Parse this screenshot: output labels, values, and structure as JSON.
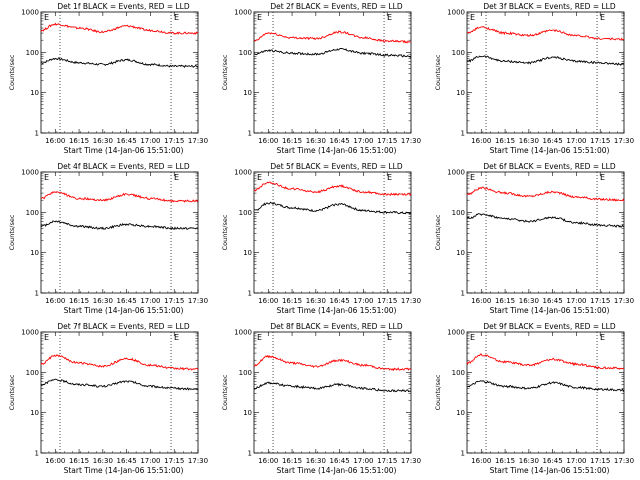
{
  "colors": {
    "events": "#000000",
    "lld": "#ff0000",
    "axes": "#000000",
    "marker": "#000000"
  },
  "shared": {
    "title_suffix": "BLACK = Events, RED = LLD",
    "ylabel": "Counts/sec",
    "xlabel": "Start Time (14-Jan-06 15:51:00)",
    "xticks": [
      "16:00",
      "16:15",
      "16:30",
      "16:45",
      "17:00",
      "17:15",
      "17:30"
    ],
    "yticks": [
      "1",
      "10",
      "100",
      "1000"
    ],
    "corner_mark": "E",
    "y_scale": "log"
  },
  "chart_data": [
    {
      "type": "line",
      "title": "Det 1f BLACK = Events, RED = LLD",
      "xlabel": "Start Time (14-Jan-06 15:51:00)",
      "ylabel": "Counts/sec",
      "x": [
        "15:51",
        "16:00",
        "16:15",
        "16:30",
        "16:45",
        "17:00",
        "17:15",
        "17:30"
      ],
      "ylim": [
        1,
        1000
      ],
      "y_scale": "log",
      "series": [
        {
          "name": "Events",
          "values": [
            55,
            70,
            55,
            50,
            65,
            50,
            45,
            45
          ]
        },
        {
          "name": "LLD",
          "values": [
            350,
            500,
            400,
            320,
            450,
            350,
            300,
            300
          ]
        }
      ]
    },
    {
      "type": "line",
      "title": "Det 2f BLACK = Events, RED = LLD",
      "xlabel": "Start Time (14-Jan-06 15:51:00)",
      "ylabel": "Counts/sec",
      "x": [
        "15:51",
        "16:00",
        "16:15",
        "16:30",
        "16:45",
        "17:00",
        "17:15",
        "17:30"
      ],
      "ylim": [
        1,
        1000
      ],
      "y_scale": "log",
      "series": [
        {
          "name": "Events",
          "values": [
            90,
            110,
            95,
            90,
            120,
            95,
            85,
            80
          ]
        },
        {
          "name": "LLD",
          "values": [
            190,
            300,
            230,
            220,
            320,
            230,
            190,
            180
          ]
        }
      ]
    },
    {
      "type": "line",
      "title": "Det 3f BLACK = Events, RED = LLD",
      "xlabel": "Start Time (14-Jan-06 15:51:00)",
      "ylabel": "Counts/sec",
      "x": [
        "15:51",
        "16:00",
        "16:15",
        "16:30",
        "16:45",
        "17:00",
        "17:15",
        "17:30"
      ],
      "ylim": [
        1,
        1000
      ],
      "y_scale": "log",
      "series": [
        {
          "name": "Events",
          "values": [
            60,
            80,
            60,
            55,
            75,
            60,
            55,
            50
          ]
        },
        {
          "name": "LLD",
          "values": [
            300,
            420,
            300,
            260,
            350,
            260,
            220,
            210
          ]
        }
      ]
    },
    {
      "type": "line",
      "title": "Det 4f BLACK = Events, RED = LLD",
      "xlabel": "Start Time (14-Jan-06 15:51:00)",
      "ylabel": "Counts/sec",
      "x": [
        "15:51",
        "16:00",
        "16:15",
        "16:30",
        "16:45",
        "17:00",
        "17:15",
        "17:30"
      ],
      "ylim": [
        1,
        1000
      ],
      "y_scale": "log",
      "series": [
        {
          "name": "Events",
          "values": [
            45,
            60,
            45,
            40,
            50,
            45,
            40,
            40
          ]
        },
        {
          "name": "LLD",
          "values": [
            220,
            320,
            220,
            200,
            280,
            220,
            190,
            190
          ]
        }
      ]
    },
    {
      "type": "line",
      "title": "Det 5f BLACK = Events, RED = LLD",
      "xlabel": "Start Time (14-Jan-06 15:51:00)",
      "ylabel": "Counts/sec",
      "x": [
        "15:51",
        "16:00",
        "16:15",
        "16:30",
        "16:45",
        "17:00",
        "17:15",
        "17:30"
      ],
      "ylim": [
        1,
        1000
      ],
      "y_scale": "log",
      "series": [
        {
          "name": "Events",
          "values": [
            110,
            170,
            130,
            110,
            160,
            110,
            100,
            95
          ]
        },
        {
          "name": "LLD",
          "values": [
            350,
            550,
            380,
            320,
            450,
            320,
            280,
            280
          ]
        }
      ]
    },
    {
      "type": "line",
      "title": "Det 6f BLACK = Events, RED = LLD",
      "xlabel": "Start Time (14-Jan-06 15:51:00)",
      "ylabel": "Counts/sec",
      "x": [
        "15:51",
        "16:00",
        "16:15",
        "16:30",
        "16:45",
        "17:00",
        "17:15",
        "17:30"
      ],
      "ylim": [
        1,
        1000
      ],
      "y_scale": "log",
      "series": [
        {
          "name": "Events",
          "values": [
            70,
            90,
            70,
            60,
            75,
            55,
            48,
            45
          ]
        },
        {
          "name": "LLD",
          "values": [
            280,
            400,
            300,
            250,
            320,
            240,
            210,
            200
          ]
        }
      ]
    },
    {
      "type": "line",
      "title": "Det 7f BLACK = Events, RED = LLD",
      "xlabel": "Start Time (14-Jan-06 15:51:00)",
      "ylabel": "Counts/sec",
      "x": [
        "15:51",
        "16:00",
        "16:15",
        "16:30",
        "16:45",
        "17:00",
        "17:15",
        "17:30"
      ],
      "ylim": [
        1,
        1000
      ],
      "y_scale": "log",
      "series": [
        {
          "name": "Events",
          "values": [
            50,
            65,
            50,
            45,
            60,
            45,
            40,
            38
          ]
        },
        {
          "name": "LLD",
          "values": [
            160,
            260,
            170,
            140,
            220,
            150,
            125,
            120
          ]
        }
      ]
    },
    {
      "type": "line",
      "title": "Det 8f BLACK = Events, RED = LLD",
      "xlabel": "Start Time (14-Jan-06 15:51:00)",
      "ylabel": "Counts/sec",
      "x": [
        "15:51",
        "16:00",
        "16:15",
        "16:30",
        "16:45",
        "17:00",
        "17:15",
        "17:30"
      ],
      "ylim": [
        1,
        1000
      ],
      "y_scale": "log",
      "series": [
        {
          "name": "Events",
          "values": [
            40,
            55,
            45,
            40,
            50,
            40,
            35,
            35
          ]
        },
        {
          "name": "LLD",
          "values": [
            150,
            250,
            170,
            140,
            200,
            150,
            120,
            120
          ]
        }
      ]
    },
    {
      "type": "line",
      "title": "Det 9f BLACK = Events, RED = LLD",
      "xlabel": "Start Time (14-Jan-06 15:51:00)",
      "ylabel": "Counts/sec",
      "x": [
        "15:51",
        "16:00",
        "16:15",
        "16:30",
        "16:45",
        "17:00",
        "17:15",
        "17:30"
      ],
      "ylim": [
        1,
        1000
      ],
      "y_scale": "log",
      "series": [
        {
          "name": "Events",
          "values": [
            45,
            60,
            45,
            40,
            55,
            42,
            38,
            36
          ]
        },
        {
          "name": "LLD",
          "values": [
            170,
            270,
            180,
            150,
            210,
            160,
            130,
            125
          ]
        }
      ]
    }
  ]
}
